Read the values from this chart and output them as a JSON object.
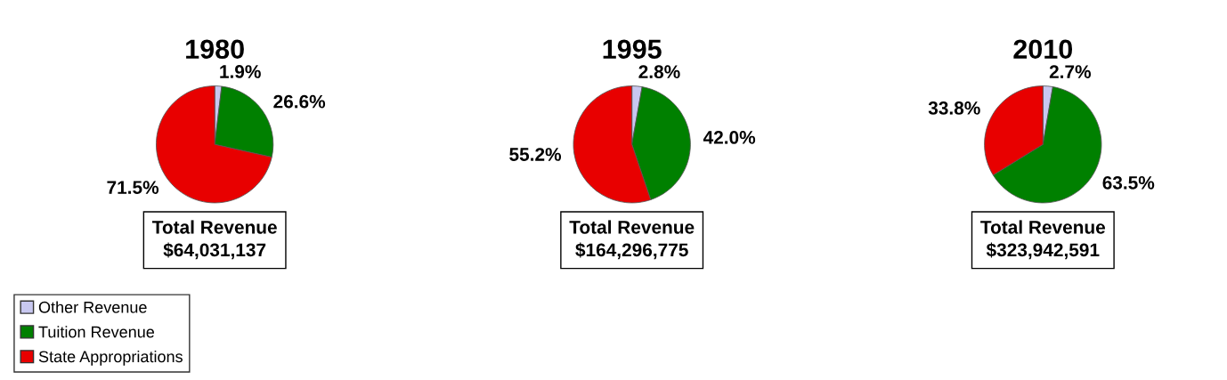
{
  "chart_data": [
    {
      "type": "pie",
      "title": "1980",
      "categories": [
        "Other Revenue",
        "Tuition Revenue",
        "State Appropriations"
      ],
      "values": [
        1.9,
        26.6,
        71.5
      ],
      "value_labels": [
        "1.9%",
        "26.6%",
        "71.5%"
      ],
      "colors": [
        "#c8c8f0",
        "#008000",
        "#e80000"
      ],
      "legend": "bottom left",
      "annotations": [
        "Total Revenue\n$64,031,137"
      ]
    },
    {
      "type": "pie",
      "title": "1995",
      "values": [
        2.8,
        42.0,
        55.2
      ],
      "value_labels": [
        "2.8%",
        "42.0%",
        "55.2%"
      ],
      "colors": [
        "#c8c8f0",
        "#008000",
        "#e80000"
      ],
      "annotations": [
        "Total Revenue\n$164,296,775"
      ]
    },
    {
      "type": "pie",
      "title": "2010",
      "values": [
        2.7,
        63.5,
        33.8
      ],
      "value_labels": [
        "2.7%",
        "63.5%",
        "33.8%"
      ],
      "colors": [
        "#c8c8f0",
        "#008000",
        "#e80000"
      ],
      "annotations": [
        "Total Revenue\n$323,942,591"
      ]
    }
  ]
}
